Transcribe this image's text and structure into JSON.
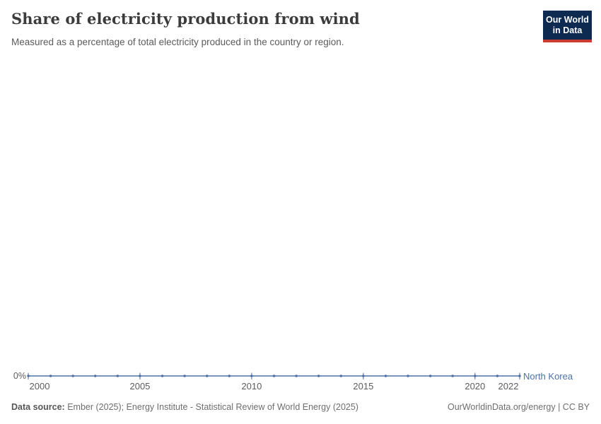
{
  "header": {
    "title": "Share of electricity production from wind",
    "subtitle": "Measured as a percentage of total electricity produced in the country or region."
  },
  "logo": {
    "line1": "Our World",
    "line2": "in Data",
    "bg_color": "#0e2a51",
    "stripe_color": "#cc3b31"
  },
  "chart_data": {
    "type": "line",
    "title": "Share of electricity production from wind",
    "subtitle": "Measured as a percentage of total electricity produced in the country or region.",
    "xlabel": "",
    "ylabel": "",
    "x": [
      2000,
      2001,
      2002,
      2003,
      2004,
      2005,
      2006,
      2007,
      2008,
      2009,
      2010,
      2011,
      2012,
      2013,
      2014,
      2015,
      2016,
      2017,
      2018,
      2019,
      2020,
      2021,
      2022
    ],
    "series": [
      {
        "name": "North Korea",
        "color": "#4c6fa8",
        "values": [
          0,
          0,
          0,
          0,
          0,
          0,
          0,
          0,
          0,
          0,
          0,
          0,
          0,
          0,
          0,
          0,
          0,
          0,
          0,
          0,
          0,
          0,
          0
        ]
      }
    ],
    "x_tick_years": [
      2000,
      2005,
      2010,
      2015,
      2020,
      2022
    ],
    "x_tick_labels": [
      "2000",
      "2005",
      "2010",
      "2015",
      "2020",
      "2022"
    ],
    "y_tick_labels": [
      "0%"
    ],
    "xlim": [
      2000,
      2022
    ],
    "ylim": [
      0,
      0
    ],
    "grid": false,
    "legend_position": "end-of-line",
    "marker": "circle"
  },
  "footer": {
    "data_source_label": "Data source:",
    "data_source_text": " Ember (2025); Energy Institute - Statistical Review of World Energy (2025)",
    "credit": "OurWorldinData.org/energy | CC BY"
  }
}
